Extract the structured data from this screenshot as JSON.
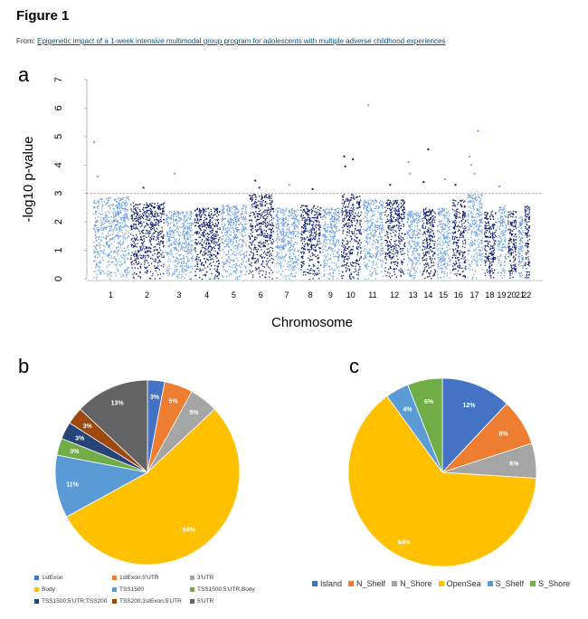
{
  "figure": {
    "title": "Figure 1",
    "from_prefix": "From: ",
    "from_link": "Epigenetic impact of a 1-week intensive multimodal group program for adolescents with multiple adverse childhood experiences"
  },
  "panels": {
    "a": "a",
    "b": "b",
    "c": "c"
  },
  "colors": {
    "light": "#6a9fe6",
    "dark": "#0b1a6e",
    "threshold": "#e05a5a"
  },
  "chart_data": [
    {
      "id": "a",
      "type": "scatter",
      "subtype": "manhattan",
      "xlabel": "Chromosome",
      "ylabel": "-log10 p-value",
      "ylim": [
        0,
        7
      ],
      "yticks": [
        "0",
        "1",
        "2",
        "3",
        "4",
        "5",
        "6",
        "7"
      ],
      "threshold": 3.0,
      "chromosomes": [
        {
          "label": "1",
          "width": 2.2,
          "max": 2.9
        },
        {
          "label": "2",
          "width": 2.1,
          "max": 2.7
        },
        {
          "label": "3",
          "width": 1.7,
          "max": 2.4
        },
        {
          "label": "4",
          "width": 1.6,
          "max": 2.5
        },
        {
          "label": "5",
          "width": 1.6,
          "max": 2.6
        },
        {
          "label": "6",
          "width": 1.6,
          "max": 3.0
        },
        {
          "label": "7",
          "width": 1.5,
          "max": 2.5
        },
        {
          "label": "8",
          "width": 1.3,
          "max": 2.6
        },
        {
          "label": "9",
          "width": 1.1,
          "max": 2.5
        },
        {
          "label": "10",
          "width": 1.3,
          "max": 3.0
        },
        {
          "label": "11",
          "width": 1.3,
          "max": 2.8
        },
        {
          "label": "12",
          "width": 1.3,
          "max": 2.8
        },
        {
          "label": "13",
          "width": 0.9,
          "max": 2.4
        },
        {
          "label": "14",
          "width": 0.9,
          "max": 2.5
        },
        {
          "label": "15",
          "width": 0.9,
          "max": 2.5
        },
        {
          "label": "16",
          "width": 0.9,
          "max": 2.8
        },
        {
          "label": "17",
          "width": 1.0,
          "max": 3.0
        },
        {
          "label": "18",
          "width": 0.8,
          "max": 2.4
        },
        {
          "label": "19",
          "width": 0.6,
          "max": 2.6
        },
        {
          "label": "20",
          "width": 0.6,
          "max": 2.4
        },
        {
          "label": "21",
          "width": 0.4,
          "max": 2.2
        },
        {
          "label": "22",
          "width": 0.4,
          "max": 2.6
        }
      ],
      "top_hits": [
        {
          "chr": "1",
          "pos": 0.05,
          "y": 4.8
        },
        {
          "chr": "1",
          "pos": 0.15,
          "y": 3.6
        },
        {
          "chr": "2",
          "pos": 0.4,
          "y": 3.2
        },
        {
          "chr": "3",
          "pos": 0.35,
          "y": 3.7
        },
        {
          "chr": "6",
          "pos": 0.3,
          "y": 3.45
        },
        {
          "chr": "6",
          "pos": 0.45,
          "y": 3.2
        },
        {
          "chr": "7",
          "pos": 0.6,
          "y": 3.3
        },
        {
          "chr": "8",
          "pos": 0.6,
          "y": 3.15
        },
        {
          "chr": "10",
          "pos": 0.2,
          "y": 4.3
        },
        {
          "chr": "10",
          "pos": 0.25,
          "y": 3.95
        },
        {
          "chr": "10",
          "pos": 0.6,
          "y": 4.2
        },
        {
          "chr": "11",
          "pos": 0.3,
          "y": 6.1
        },
        {
          "chr": "12",
          "pos": 0.3,
          "y": 3.3
        },
        {
          "chr": "13",
          "pos": 0.2,
          "y": 4.1
        },
        {
          "chr": "13",
          "pos": 0.3,
          "y": 3.7
        },
        {
          "chr": "14",
          "pos": 0.2,
          "y": 3.4
        },
        {
          "chr": "14",
          "pos": 0.5,
          "y": 4.55
        },
        {
          "chr": "15",
          "pos": 0.6,
          "y": 3.5
        },
        {
          "chr": "16",
          "pos": 0.3,
          "y": 3.3
        },
        {
          "chr": "17",
          "pos": 0.2,
          "y": 4.3
        },
        {
          "chr": "17",
          "pos": 0.3,
          "y": 4.0
        },
        {
          "chr": "17",
          "pos": 0.5,
          "y": 3.7
        },
        {
          "chr": "17",
          "pos": 0.7,
          "y": 5.2
        },
        {
          "chr": "19",
          "pos": 0.3,
          "y": 3.25
        }
      ]
    },
    {
      "id": "b",
      "type": "pie",
      "slices": [
        {
          "label": "1stExon",
          "value": 3,
          "color": "#4472c4",
          "text": "3%"
        },
        {
          "label": "1stExon;5'UTR",
          "value": 5,
          "color": "#ed7d31",
          "text": "5%"
        },
        {
          "label": "3'UTR",
          "value": 5,
          "color": "#a5a5a5",
          "text": "5%"
        },
        {
          "label": "Body",
          "value": 54,
          "color": "#ffc000",
          "text": "54%"
        },
        {
          "label": "TSS1500",
          "value": 11,
          "color": "#5b9bd5",
          "text": "11%"
        },
        {
          "label": "TSS1500;5'UTR;Body",
          "value": 3,
          "color": "#70ad47",
          "text": "3%"
        },
        {
          "label": "TSS1500;5'UTR;TSS200",
          "value": 3,
          "color": "#264478",
          "text": "3%"
        },
        {
          "label": "TSS200;1stExon;5'UTR",
          "value": 3,
          "color": "#9e480e",
          "text": "3%"
        },
        {
          "label": "5'UTR",
          "value": 13,
          "color": "#636363",
          "text": "13%"
        }
      ]
    },
    {
      "id": "c",
      "type": "pie",
      "slices": [
        {
          "label": "Island",
          "value": 12,
          "color": "#4472c4",
          "text": "12%"
        },
        {
          "label": "N_Shelf",
          "value": 8,
          "color": "#ed7d31",
          "text": "8%"
        },
        {
          "label": "N_Shore",
          "value": 6,
          "color": "#a5a5a5",
          "text": "6%"
        },
        {
          "label": "OpenSea",
          "value": 64,
          "color": "#ffc000",
          "text": "64%"
        },
        {
          "label": "S_Shelf",
          "value": 4,
          "color": "#5b9bd5",
          "text": "4%"
        },
        {
          "label": "S_Shore",
          "value": 6,
          "color": "#70ad47",
          "text": "6%"
        }
      ]
    }
  ]
}
